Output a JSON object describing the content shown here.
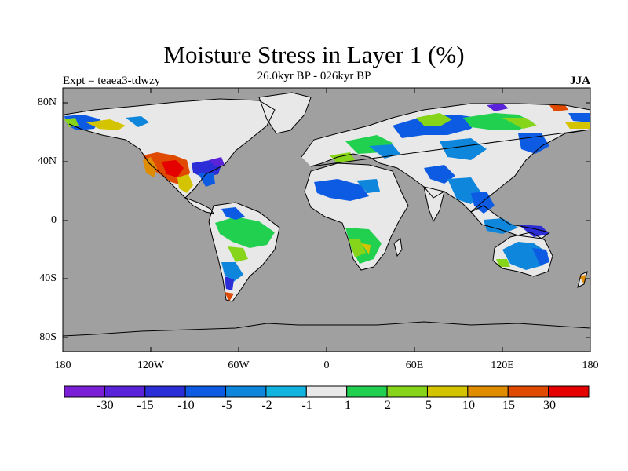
{
  "title": "Moisture Stress in Layer 1 (%)",
  "subtitle": "26.0kyr BP - 026kyr BP",
  "left_note": "Expt = teaea3-tdwzy",
  "right_note": "JJA",
  "lat_labels": [
    "80N",
    "40N",
    "0",
    "40S",
    "80S"
  ],
  "lon_labels": [
    "180",
    "120W",
    "60W",
    "0",
    "60E",
    "120E",
    "180"
  ],
  "colorbar": {
    "colors": [
      "#7b1fd6",
      "#5a22d9",
      "#2b2ed6",
      "#0d5be3",
      "#0e86dc",
      "#12b3df",
      "#e8e8e8",
      "#22d04f",
      "#86d51a",
      "#d4c400",
      "#e08c00",
      "#e04a00",
      "#e50000"
    ],
    "labels": [
      "-30",
      "-15",
      "-10",
      "-5",
      "-2",
      "-1",
      "1",
      "2",
      "5",
      "10",
      "15",
      "30"
    ]
  },
  "map": {
    "ocean_color": "#a0a0a0",
    "land_neutral_color": "#e8e8e8",
    "coast_color": "#000000"
  }
}
